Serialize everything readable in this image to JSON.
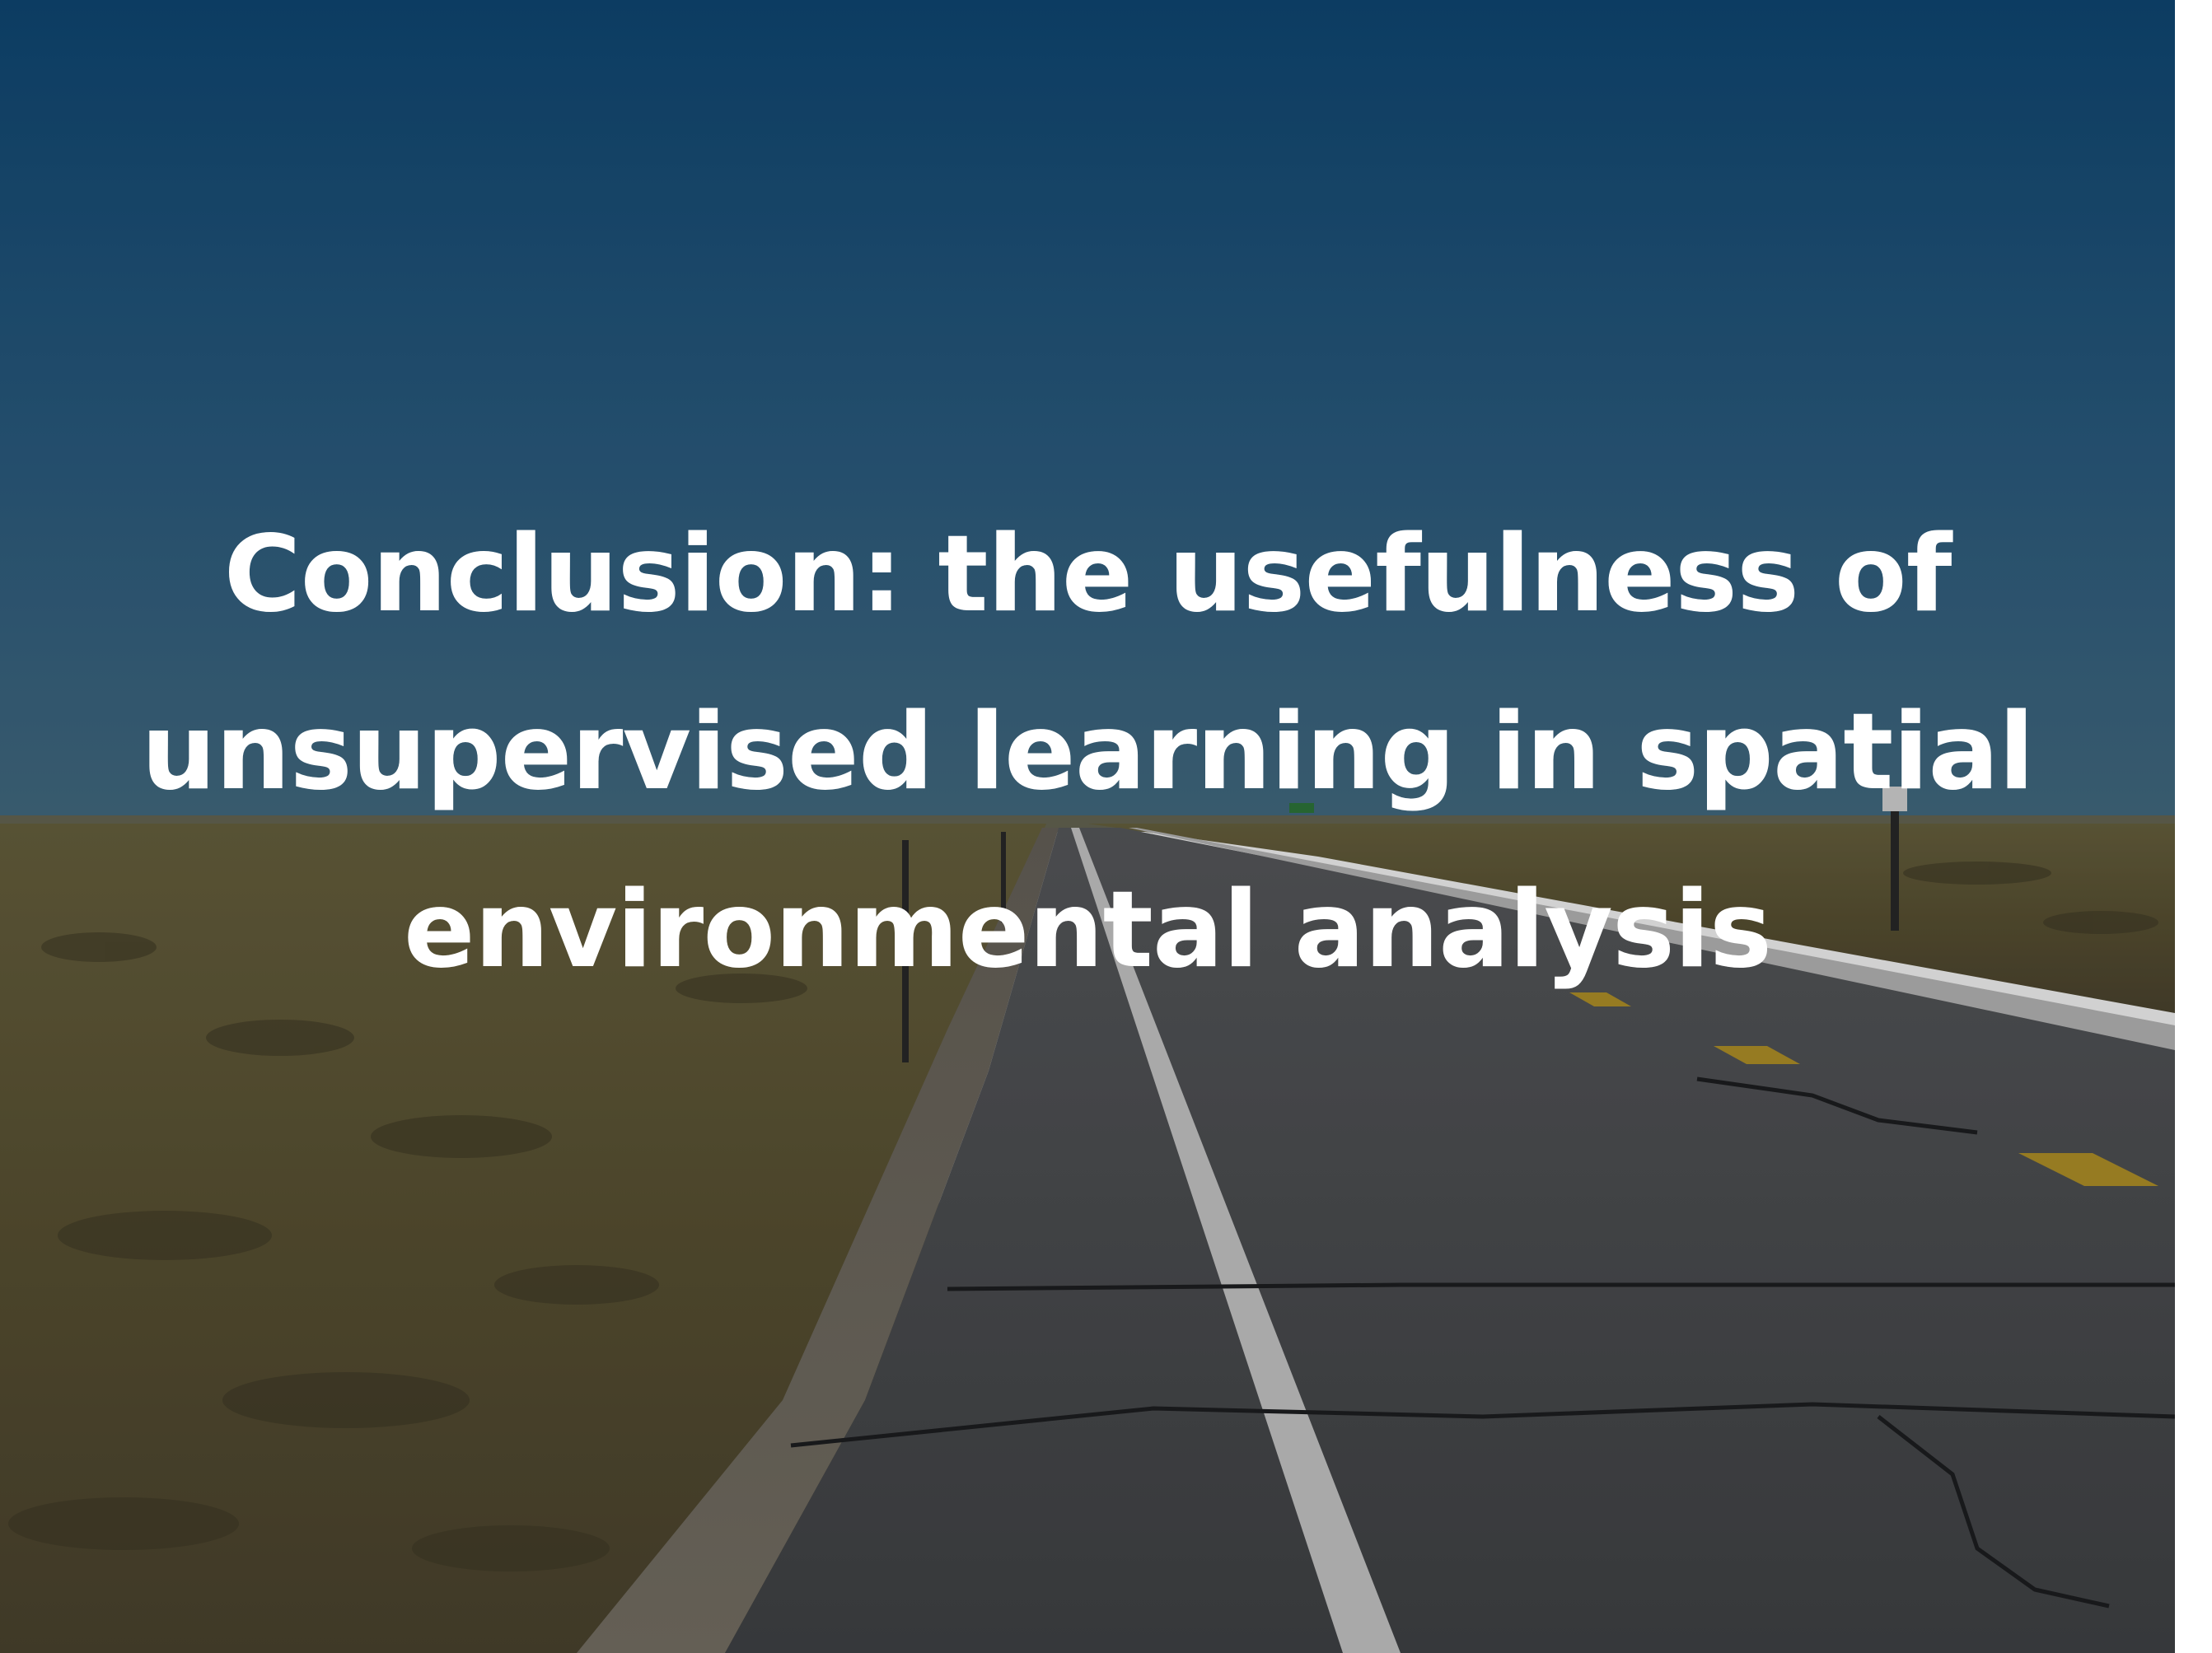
{
  "slide": {
    "title": "Conclusion: the usefulness of\nunsupervised learning in spatial\nenvironmental analysis"
  },
  "background": {
    "description_icon": "highway-landscape-photo",
    "colors": {
      "sky_top": "#0f4a78",
      "sky_horizon": "#3b6884",
      "grass": "#5a5332",
      "road": "#4a4c4f",
      "lane_line": "#d6d6d6",
      "center_line": "#b8962a",
      "title_text": "#ffffff"
    }
  }
}
